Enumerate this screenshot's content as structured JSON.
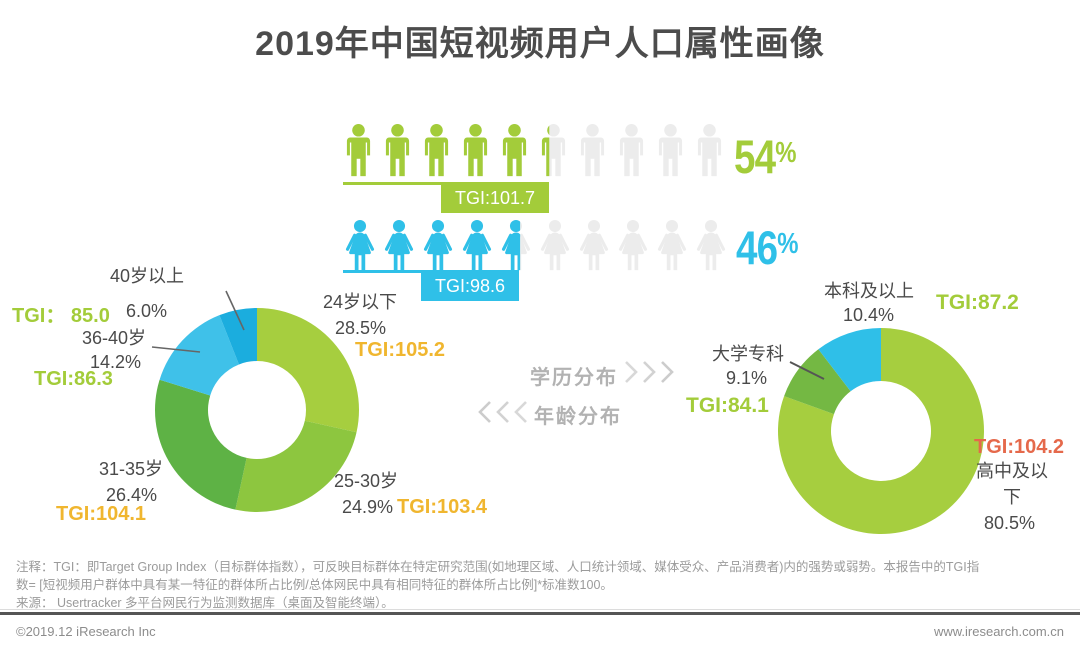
{
  "page_title": "2019年中国短视频用户人口属性画像",
  "gender": {
    "male": {
      "number": "54",
      "percent_sign": "%",
      "tgi_badge": "TGI:101.7"
    },
    "female": {
      "number": "46",
      "percent_sign": "%",
      "tgi_badge": "TGI:98.6"
    }
  },
  "center_flow": {
    "education_label": "学历分布",
    "age_label": "年龄分布"
  },
  "age_chart": {
    "under24": {
      "name": "24岁以下",
      "pct": "28.5%",
      "tgi": "TGI:105.2"
    },
    "age2530": {
      "name": "25-30岁",
      "pct": "24.9%",
      "tgi": "TGI:103.4"
    },
    "age3135": {
      "name": "31-35岁",
      "pct": "26.4%",
      "tgi": "TGI:104.1"
    },
    "age3640": {
      "name": "36-40岁",
      "pct": "14.2%",
      "tgi": "TGI:86.3"
    },
    "age40plus": {
      "name": "40岁以上",
      "pct": "6.0%",
      "tgi": "TGI： 85.0"
    }
  },
  "edu_chart": {
    "bachelor": {
      "name": "本科及以上",
      "pct": "10.4%",
      "tgi": "TGI:87.2"
    },
    "college": {
      "name": "大学专科",
      "pct": "9.1%",
      "tgi": "TGI:84.1"
    },
    "highschool": {
      "name": "高中及以下",
      "pct": "80.5%",
      "tgi": "TGI:104.2"
    }
  },
  "notes": {
    "line1": "注释：TGI：即Target Group Index（目标群体指数），可反映目标群体在特定研究范围(如地理区域、人口统计领域、媒体受众、产品消费者)内的强势或弱势。本报告中的TGI指",
    "line2": "数= [短视频用户群体中具有某一特征的群体所占比例/总体网民中具有相同特征的群体所占比例]*标准数100。",
    "line3": "来源： Usertracker 多平台网民行为监测数据库（桌面及智能终端）。"
  },
  "footer": {
    "copyright": "©2019.12 iResearch Inc",
    "website": "www.iresearch.com.cn"
  },
  "colors": {
    "green": "#a3cc3a",
    "cyan": "#2fc0e8",
    "tgi_yellow": "#f0b62f",
    "tgi_green": "#a3cc3a",
    "tgi_coral": "#e5694b",
    "icon_gray": "#ececec"
  },
  "chart_data": [
    {
      "type": "pie",
      "subtype": "donut",
      "name": "age-distribution",
      "title": "年龄分布",
      "categories": [
        "24岁以下",
        "25-30岁",
        "31-35岁",
        "36-40岁",
        "40岁以上"
      ],
      "values": [
        28.5,
        24.9,
        26.4,
        14.2,
        6.0
      ],
      "tgi": [
        105.2,
        103.4,
        104.1,
        86.3,
        85.0
      ],
      "colors": [
        "#a6ce3f",
        "#8dc63f",
        "#5eb245",
        "#3fc1e9",
        "#1badde"
      ],
      "start_angle_deg": 0,
      "direction": "clockwise",
      "legend": "off",
      "unit": "%"
    },
    {
      "type": "pie",
      "subtype": "donut",
      "name": "education-distribution",
      "title": "学历分布",
      "categories": [
        "高中及以下",
        "大学专科",
        "本科及以上"
      ],
      "values": [
        80.5,
        9.1,
        10.4
      ],
      "tgi": [
        104.2,
        84.1,
        87.2
      ],
      "colors": [
        "#a6ce3f",
        "#74b843",
        "#2fbfe8"
      ],
      "start_angle_deg": 0,
      "direction": "clockwise",
      "legend": "off",
      "unit": "%"
    },
    {
      "type": "pictograph",
      "name": "gender-distribution",
      "categories": [
        "male",
        "female"
      ],
      "values": [
        54,
        46
      ],
      "tgi": [
        101.7,
        98.6
      ],
      "icons_total": 10,
      "unit": "%",
      "colors": [
        "#a3cc3a",
        "#2fc0e8"
      ]
    }
  ]
}
